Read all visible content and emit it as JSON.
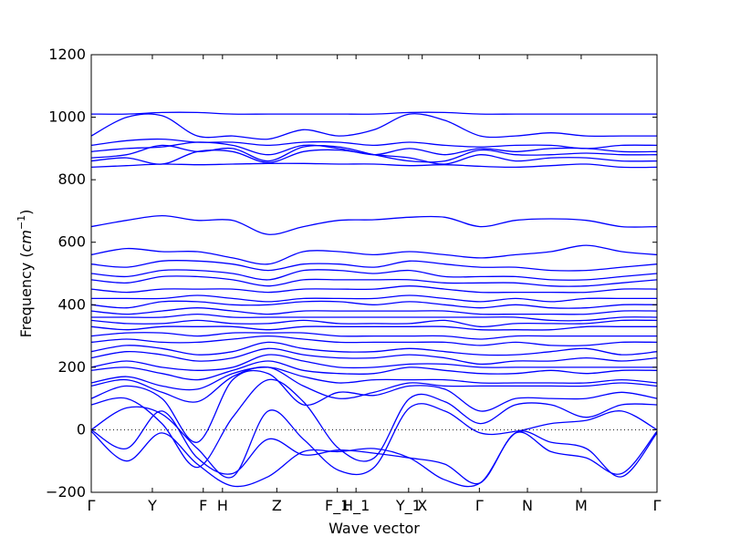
{
  "chart_data": {
    "type": "line",
    "xlabel": "Wave vector",
    "ylabel_prefix": "Frequency (",
    "ylabel_unit": "cm",
    "ylabel_exp": "−1",
    "ylabel_suffix": ")",
    "ylim": [
      -200,
      1200
    ],
    "xlim": [
      0,
      1
    ],
    "yticks": [
      -200,
      0,
      200,
      400,
      600,
      800,
      1000,
      1200
    ],
    "ytick_labels": [
      "−200",
      "0",
      "200",
      "400",
      "600",
      "800",
      "1000",
      "1200"
    ],
    "zero_line": true,
    "line_color": "#0000ff",
    "xticks": [
      {
        "label": "Γ",
        "x": 0.0
      },
      {
        "label": "Y",
        "x": 0.108
      },
      {
        "label": "F",
        "x": 0.198
      },
      {
        "label": "H",
        "x": 0.232
      },
      {
        "label": "Z",
        "x": 0.328
      },
      {
        "label": "F_1",
        "x": 0.435
      },
      {
        "label": "H_1",
        "x": 0.468
      },
      {
        "label": "Y_1",
        "x": 0.561
      },
      {
        "label": "X",
        "x": 0.585
      },
      {
        "label": "Γ",
        "x": 0.686
      },
      {
        "label": "N",
        "x": 0.771
      },
      {
        "label": "M",
        "x": 0.866
      },
      {
        "label": "Γ",
        "x": 1.0
      }
    ],
    "bands": [
      [
        -5,
        -100,
        -10,
        -110,
        -180,
        -150,
        -70,
        -70,
        -60,
        -90,
        -160,
        -170,
        -10,
        -40,
        -60,
        -150,
        -10
      ],
      [
        0,
        -60,
        60,
        -90,
        -140,
        -30,
        -80,
        -65,
        -75,
        -90,
        -110,
        -170,
        -10,
        -70,
        -90,
        -140,
        -5
      ],
      [
        0,
        70,
        50,
        -60,
        -150,
        60,
        -30,
        -130,
        -120,
        70,
        60,
        -10,
        -5,
        20,
        30,
        60,
        0
      ],
      [
        80,
        100,
        20,
        -120,
        40,
        160,
        90,
        -60,
        -90,
        100,
        90,
        20,
        80,
        80,
        40,
        80,
        80
      ],
      [
        100,
        140,
        100,
        -40,
        160,
        180,
        80,
        120,
        110,
        140,
        130,
        60,
        100,
        100,
        100,
        120,
        100
      ],
      [
        140,
        160,
        120,
        90,
        170,
        200,
        140,
        100,
        120,
        150,
        140,
        140,
        140,
        140,
        140,
        150,
        140
      ],
      [
        150,
        170,
        140,
        130,
        180,
        200,
        170,
        150,
        160,
        160,
        160,
        150,
        150,
        150,
        150,
        160,
        150
      ],
      [
        190,
        200,
        180,
        160,
        190,
        220,
        190,
        180,
        180,
        200,
        190,
        180,
        180,
        190,
        180,
        190,
        190
      ],
      [
        200,
        220,
        200,
        190,
        200,
        240,
        220,
        200,
        200,
        210,
        210,
        200,
        200,
        200,
        200,
        200,
        200
      ],
      [
        230,
        250,
        240,
        220,
        230,
        260,
        240,
        230,
        230,
        240,
        230,
        210,
        220,
        220,
        230,
        220,
        230
      ],
      [
        250,
        270,
        260,
        240,
        250,
        280,
        260,
        250,
        250,
        260,
        250,
        240,
        240,
        250,
        260,
        240,
        250
      ],
      [
        280,
        290,
        280,
        280,
        290,
        300,
        290,
        280,
        280,
        280,
        280,
        270,
        280,
        270,
        270,
        280,
        280
      ],
      [
        300,
        310,
        310,
        300,
        310,
        310,
        310,
        300,
        300,
        300,
        300,
        290,
        300,
        300,
        300,
        300,
        300
      ],
      [
        330,
        320,
        330,
        330,
        330,
        320,
        330,
        330,
        330,
        330,
        330,
        320,
        320,
        320,
        330,
        330,
        330
      ],
      [
        350,
        340,
        340,
        350,
        340,
        340,
        350,
        340,
        340,
        340,
        350,
        330,
        340,
        340,
        340,
        350,
        350
      ],
      [
        360,
        360,
        360,
        370,
        360,
        360,
        360,
        360,
        360,
        360,
        360,
        360,
        360,
        350,
        350,
        360,
        360
      ],
      [
        380,
        370,
        380,
        390,
        380,
        370,
        380,
        380,
        380,
        380,
        380,
        370,
        370,
        370,
        370,
        380,
        380
      ],
      [
        400,
        390,
        410,
        410,
        400,
        400,
        410,
        410,
        400,
        410,
        400,
        390,
        400,
        390,
        390,
        400,
        400
      ],
      [
        420,
        420,
        420,
        430,
        420,
        410,
        420,
        420,
        420,
        430,
        420,
        410,
        420,
        410,
        420,
        420,
        420
      ],
      [
        450,
        440,
        450,
        450,
        450,
        440,
        450,
        450,
        450,
        460,
        450,
        440,
        440,
        440,
        440,
        450,
        450
      ],
      [
        480,
        470,
        490,
        490,
        480,
        460,
        480,
        480,
        480,
        480,
        470,
        470,
        470,
        460,
        460,
        470,
        480
      ],
      [
        500,
        490,
        510,
        510,
        500,
        480,
        510,
        510,
        500,
        510,
        490,
        490,
        490,
        480,
        480,
        490,
        500
      ],
      [
        530,
        520,
        540,
        540,
        530,
        510,
        530,
        530,
        520,
        540,
        530,
        520,
        520,
        510,
        510,
        520,
        530
      ],
      [
        560,
        580,
        570,
        570,
        550,
        530,
        570,
        570,
        560,
        570,
        560,
        550,
        560,
        570,
        590,
        570,
        560
      ],
      [
        650,
        670,
        685,
        670,
        670,
        625,
        650,
        670,
        672,
        680,
        680,
        650,
        670,
        675,
        670,
        650,
        650
      ],
      [
        840,
        845,
        850,
        848,
        850,
        852,
        852,
        850,
        850,
        845,
        848,
        843,
        840,
        845,
        850,
        840,
        840
      ],
      [
        860,
        870,
        850,
        890,
        890,
        855,
        890,
        895,
        880,
        870,
        850,
        880,
        860,
        870,
        870,
        860,
        860
      ],
      [
        870,
        880,
        910,
        890,
        900,
        860,
        905,
        905,
        880,
        860,
        860,
        895,
        880,
        880,
        885,
        880,
        880
      ],
      [
        890,
        900,
        905,
        920,
        910,
        880,
        910,
        900,
        880,
        900,
        880,
        900,
        890,
        900,
        900,
        890,
        890
      ],
      [
        910,
        925,
        930,
        920,
        920,
        910,
        920,
        920,
        910,
        920,
        910,
        905,
        910,
        910,
        900,
        910,
        910
      ],
      [
        940,
        1000,
        1005,
        940,
        940,
        930,
        960,
        940,
        960,
        1010,
        990,
        940,
        940,
        950,
        940,
        940,
        940
      ],
      [
        1010,
        1010,
        1015,
        1015,
        1010,
        1010,
        1010,
        1010,
        1010,
        1015,
        1015,
        1010,
        1010,
        1010,
        1010,
        1010,
        1010
      ]
    ]
  }
}
